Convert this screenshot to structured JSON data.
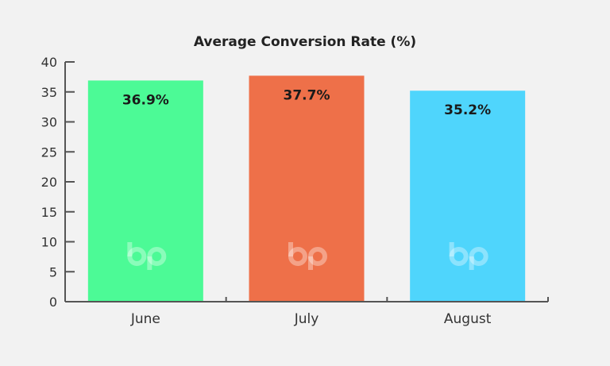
{
  "chart_data": {
    "type": "bar",
    "title": "Average Conversion Rate (%)",
    "xlabel": "",
    "ylabel": "",
    "categories": [
      "June",
      "July",
      "August"
    ],
    "values": [
      36.9,
      37.7,
      35.2
    ],
    "data_labels": [
      "36.9%",
      "37.7%",
      "35.2%"
    ],
    "bar_colors": [
      "#4cfa96",
      "#ee7049",
      "#4fd5fc"
    ],
    "ylim": [
      0,
      40
    ],
    "yticks": [
      0,
      5,
      10,
      15,
      20,
      25,
      30,
      35,
      40
    ],
    "grid": false,
    "legend": "none"
  },
  "icons": {
    "watermark": "bp-logo-icon"
  }
}
